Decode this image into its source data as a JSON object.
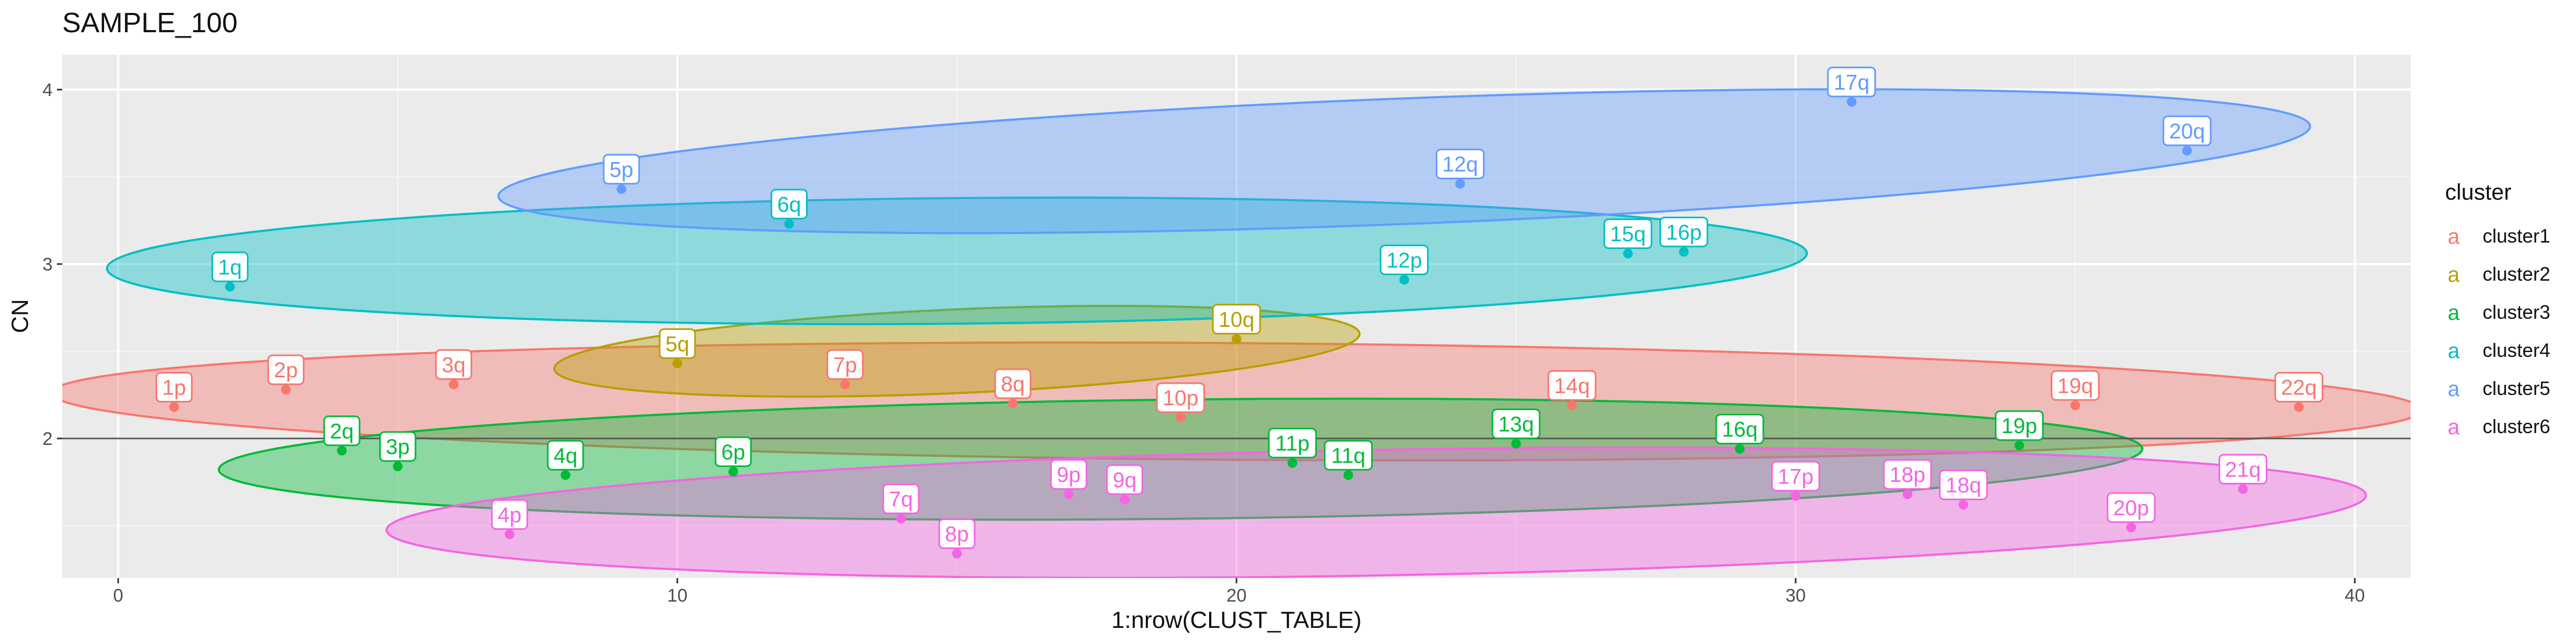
{
  "chart_data": {
    "type": "scatter",
    "title": "SAMPLE_100",
    "xlabel": "1:nrow(CLUST_TABLE)",
    "ylabel": "CN",
    "xlim": [
      -1,
      41
    ],
    "ylim": [
      1.2,
      4.2
    ],
    "x_ticks": [
      0,
      10,
      20,
      30,
      40
    ],
    "y_ticks": [
      2,
      3,
      4
    ],
    "grid": true,
    "reference_line_y": 2,
    "legend": {
      "title": "cluster",
      "position": "right"
    },
    "series": [
      {
        "name": "cluster1",
        "color": "#F8766D",
        "points": [
          {
            "x": 1,
            "y": 2.18,
            "label": "1p"
          },
          {
            "x": 3,
            "y": 2.28,
            "label": "2p"
          },
          {
            "x": 6,
            "y": 2.31,
            "label": "3q"
          },
          {
            "x": 13,
            "y": 2.31,
            "label": "7p"
          },
          {
            "x": 16,
            "y": 2.2,
            "label": "8q"
          },
          {
            "x": 19,
            "y": 2.12,
            "label": "10p"
          },
          {
            "x": 26,
            "y": 2.19,
            "label": "14q"
          },
          {
            "x": 35,
            "y": 2.19,
            "label": "19q"
          },
          {
            "x": 39,
            "y": 2.18,
            "label": "22q"
          }
        ]
      },
      {
        "name": "cluster2",
        "color": "#B79F00",
        "points": [
          {
            "x": 10,
            "y": 2.43,
            "label": "5q"
          },
          {
            "x": 20,
            "y": 2.57,
            "label": "10q"
          }
        ]
      },
      {
        "name": "cluster3",
        "color": "#00BA38",
        "points": [
          {
            "x": 4,
            "y": 1.93,
            "label": "2q"
          },
          {
            "x": 5,
            "y": 1.84,
            "label": "3p"
          },
          {
            "x": 8,
            "y": 1.79,
            "label": "4q"
          },
          {
            "x": 11,
            "y": 1.81,
            "label": "6p"
          },
          {
            "x": 21,
            "y": 1.86,
            "label": "11p"
          },
          {
            "x": 22,
            "y": 1.79,
            "label": "11q"
          },
          {
            "x": 25,
            "y": 1.97,
            "label": "13q"
          },
          {
            "x": 29,
            "y": 1.94,
            "label": "16q"
          },
          {
            "x": 34,
            "y": 1.96,
            "label": "19p"
          }
        ]
      },
      {
        "name": "cluster4",
        "color": "#00BFC4",
        "points": [
          {
            "x": 2,
            "y": 2.87,
            "label": "1q"
          },
          {
            "x": 12,
            "y": 3.23,
            "label": "6q"
          },
          {
            "x": 23,
            "y": 2.91,
            "label": "12p"
          },
          {
            "x": 27,
            "y": 3.06,
            "label": "15q"
          },
          {
            "x": 28,
            "y": 3.07,
            "label": "16p"
          }
        ]
      },
      {
        "name": "cluster5",
        "color": "#619CFF",
        "points": [
          {
            "x": 9,
            "y": 3.43,
            "label": "5p"
          },
          {
            "x": 24,
            "y": 3.46,
            "label": "12q"
          },
          {
            "x": 31,
            "y": 3.93,
            "label": "17q"
          },
          {
            "x": 37,
            "y": 3.65,
            "label": "20q"
          }
        ]
      },
      {
        "name": "cluster6",
        "color": "#F564E3",
        "points": [
          {
            "x": 7,
            "y": 1.45,
            "label": "4p"
          },
          {
            "x": 14,
            "y": 1.54,
            "label": "7q"
          },
          {
            "x": 15,
            "y": 1.34,
            "label": "8p"
          },
          {
            "x": 17,
            "y": 1.68,
            "label": "9p"
          },
          {
            "x": 18,
            "y": 1.65,
            "label": "9q"
          },
          {
            "x": 30,
            "y": 1.67,
            "label": "17p"
          },
          {
            "x": 32,
            "y": 1.68,
            "label": "18p"
          },
          {
            "x": 33,
            "y": 1.62,
            "label": "18q"
          },
          {
            "x": 36,
            "y": 1.49,
            "label": "20p"
          },
          {
            "x": 38,
            "y": 1.71,
            "label": "21q"
          }
        ]
      }
    ]
  }
}
